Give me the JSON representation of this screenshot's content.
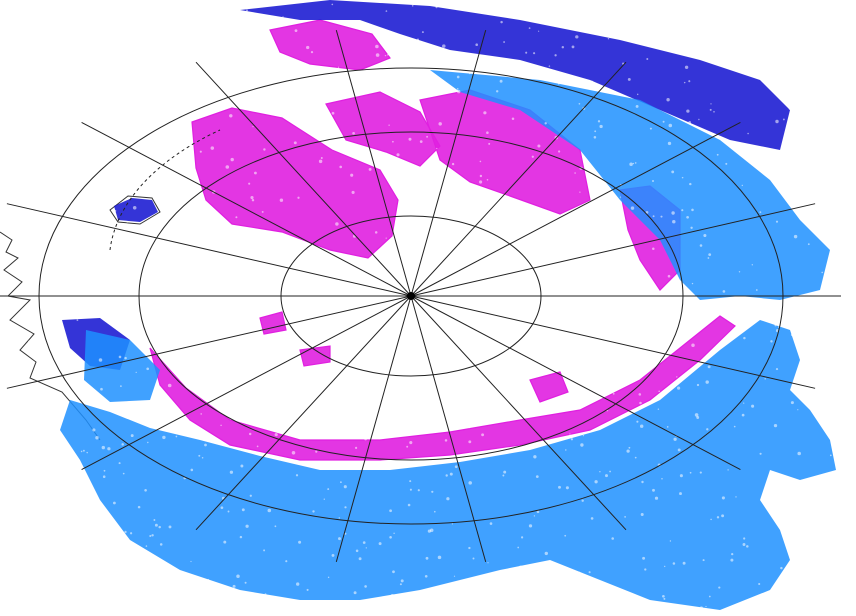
{
  "map": {
    "projection": "polar",
    "colors": {
      "background": "#ffffff",
      "graticule": "#222222",
      "coastline": "#333333",
      "pole": "#000000",
      "region_magenta": "#e020e0",
      "region_darkblue": "#1010d0",
      "region_lightblue": "#1e90ff"
    },
    "legend_classes": [
      "magenta",
      "dark-blue",
      "light-blue"
    ]
  }
}
